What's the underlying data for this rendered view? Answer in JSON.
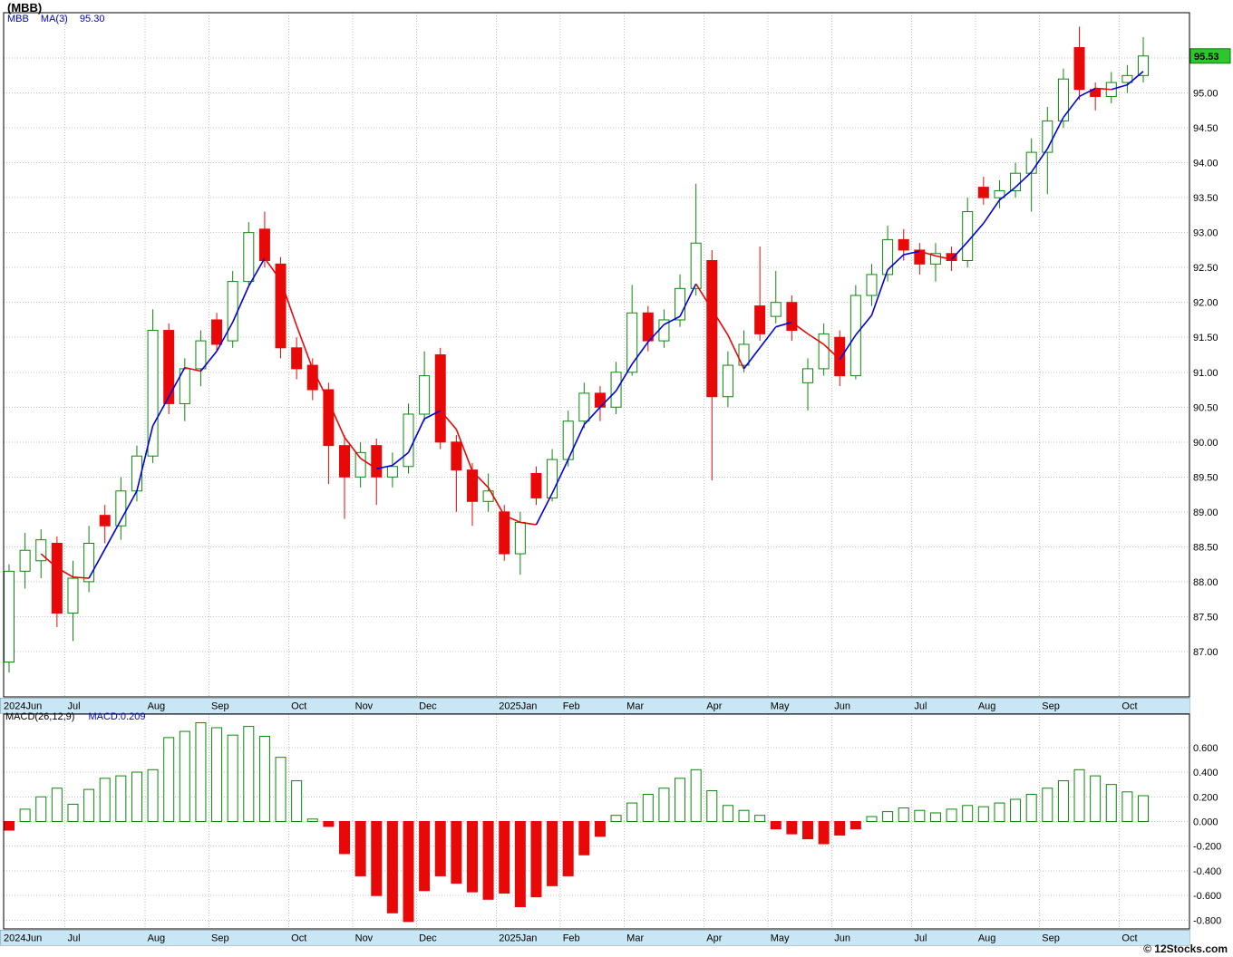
{
  "title": "(MBB)",
  "main_legend": {
    "symbol": "MBB",
    "ma": "MA(3)",
    "ma_value": "95.30"
  },
  "macd_legend": {
    "label": "MACD(26,12,9)",
    "value": "MACD:0.209"
  },
  "price_tag": "95.53",
  "watermark": "© 12Stocks.com",
  "colors": {
    "up": "#0a8a0a",
    "down": "#e80808",
    "ma_up": "#0000dd",
    "ma_down": "#e80808",
    "band": "#c9e6f4",
    "grid": "#c3c3c3",
    "border": "#000000",
    "tag_bg": "#2dc72d",
    "tag_text": "#000000",
    "legend_blue": "#0000cc",
    "axis_text": "#000000"
  },
  "axis": {
    "price_ticks": [
      "95.50",
      "95.00",
      "94.50",
      "94.00",
      "93.50",
      "93.00",
      "92.50",
      "92.00",
      "91.50",
      "91.00",
      "90.50",
      "90.00",
      "89.50",
      "89.00",
      "88.50",
      "88.00",
      "87.50",
      "87.00"
    ],
    "macd_ticks": [
      "0.600",
      "0.400",
      "0.200",
      "0.000",
      "-0.200",
      "-0.400",
      "-0.600",
      "-0.800"
    ],
    "months": [
      {
        "label": "2024Jun",
        "index": 0
      },
      {
        "label": "Jul",
        "index": 4
      },
      {
        "label": "Aug",
        "index": 9
      },
      {
        "label": "Sep",
        "index": 13
      },
      {
        "label": "Oct",
        "index": 18
      },
      {
        "label": "Nov",
        "index": 22
      },
      {
        "label": "Dec",
        "index": 26
      },
      {
        "label": "2025Jan",
        "index": 31
      },
      {
        "label": "Feb",
        "index": 35
      },
      {
        "label": "Mar",
        "index": 39
      },
      {
        "label": "Apr",
        "index": 44
      },
      {
        "label": "May",
        "index": 48
      },
      {
        "label": "Jun",
        "index": 52
      },
      {
        "label": "Jul",
        "index": 57
      },
      {
        "label": "Aug",
        "index": 61
      },
      {
        "label": "Sep",
        "index": 65
      },
      {
        "label": "Oct",
        "index": 70
      }
    ]
  },
  "chart_data": [
    {
      "type": "candlestick",
      "name": "MBB weekly price",
      "ylabel": "Price",
      "ylim": [
        86.35,
        96.15
      ],
      "ma_period": 3,
      "last_close": 95.53,
      "ohlc": [
        [
          86.85,
          88.25,
          86.7,
          88.15
        ],
        [
          88.15,
          88.7,
          87.9,
          88.45
        ],
        [
          88.3,
          88.75,
          88.05,
          88.6
        ],
        [
          88.55,
          88.65,
          87.35,
          87.55
        ],
        [
          87.55,
          88.3,
          87.15,
          88.05
        ],
        [
          88.0,
          88.8,
          87.85,
          88.55
        ],
        [
          88.95,
          89.1,
          88.55,
          88.8
        ],
        [
          88.8,
          89.5,
          88.6,
          89.3
        ],
        [
          89.3,
          89.95,
          89.15,
          89.8
        ],
        [
          89.8,
          91.9,
          89.7,
          91.6
        ],
        [
          91.6,
          91.7,
          90.4,
          90.55
        ],
        [
          90.55,
          91.2,
          90.3,
          91.05
        ],
        [
          91.05,
          91.6,
          90.8,
          91.45
        ],
        [
          91.75,
          91.85,
          91.3,
          91.4
        ],
        [
          91.45,
          92.45,
          91.35,
          92.3
        ],
        [
          92.3,
          93.15,
          92.25,
          93.0
        ],
        [
          93.05,
          93.3,
          92.5,
          92.6
        ],
        [
          92.55,
          92.65,
          91.2,
          91.35
        ],
        [
          91.35,
          91.5,
          90.9,
          91.05
        ],
        [
          91.1,
          91.2,
          90.6,
          90.75
        ],
        [
          90.75,
          90.85,
          89.4,
          89.95
        ],
        [
          89.95,
          90.1,
          88.9,
          89.5
        ],
        [
          89.5,
          90.0,
          89.35,
          89.85
        ],
        [
          89.95,
          90.05,
          89.1,
          89.5
        ],
        [
          89.5,
          89.85,
          89.35,
          89.65
        ],
        [
          89.65,
          90.55,
          89.55,
          90.4
        ],
        [
          90.4,
          91.3,
          90.3,
          90.95
        ],
        [
          91.25,
          91.35,
          89.9,
          90.0
        ],
        [
          90.0,
          90.1,
          89.0,
          89.6
        ],
        [
          89.6,
          89.7,
          88.8,
          89.15
        ],
        [
          89.15,
          89.55,
          89.0,
          89.3
        ],
        [
          89.0,
          89.1,
          88.3,
          88.4
        ],
        [
          88.4,
          89.0,
          88.1,
          88.85
        ],
        [
          89.55,
          89.65,
          89.1,
          89.2
        ],
        [
          89.2,
          89.9,
          89.15,
          89.75
        ],
        [
          89.75,
          90.45,
          89.65,
          90.3
        ],
        [
          90.3,
          90.85,
          90.2,
          90.7
        ],
        [
          90.7,
          90.8,
          90.3,
          90.5
        ],
        [
          90.5,
          91.15,
          90.4,
          91.0
        ],
        [
          91.0,
          92.25,
          90.95,
          91.85
        ],
        [
          91.85,
          91.95,
          91.3,
          91.45
        ],
        [
          91.45,
          91.9,
          91.35,
          91.75
        ],
        [
          91.75,
          92.4,
          91.65,
          92.2
        ],
        [
          92.2,
          93.7,
          92.1,
          92.85
        ],
        [
          92.6,
          92.75,
          89.45,
          90.65
        ],
        [
          90.65,
          91.3,
          90.5,
          91.1
        ],
        [
          91.1,
          91.6,
          91.0,
          91.4
        ],
        [
          91.95,
          92.8,
          91.45,
          91.55
        ],
        [
          91.8,
          92.45,
          91.7,
          92.0
        ],
        [
          92.0,
          92.1,
          91.45,
          91.6
        ],
        [
          90.85,
          91.2,
          90.45,
          91.05
        ],
        [
          91.05,
          91.7,
          90.95,
          91.55
        ],
        [
          91.5,
          91.6,
          90.8,
          90.95
        ],
        [
          90.95,
          92.25,
          90.9,
          92.1
        ],
        [
          92.1,
          92.55,
          91.95,
          92.4
        ],
        [
          92.4,
          93.1,
          92.3,
          92.9
        ],
        [
          92.9,
          93.05,
          92.6,
          92.75
        ],
        [
          92.75,
          92.85,
          92.4,
          92.55
        ],
        [
          92.55,
          92.85,
          92.3,
          92.7
        ],
        [
          92.7,
          92.8,
          92.45,
          92.6
        ],
        [
          92.6,
          93.5,
          92.5,
          93.3
        ],
        [
          93.65,
          93.8,
          93.4,
          93.5
        ],
        [
          93.5,
          93.75,
          93.35,
          93.6
        ],
        [
          93.6,
          94.0,
          93.5,
          93.85
        ],
        [
          93.85,
          94.35,
          93.3,
          94.15
        ],
        [
          94.15,
          94.8,
          93.55,
          94.6
        ],
        [
          94.6,
          95.35,
          94.5,
          95.2
        ],
        [
          95.65,
          95.95,
          94.9,
          95.05
        ],
        [
          95.05,
          95.15,
          94.75,
          94.95
        ],
        [
          94.95,
          95.3,
          94.85,
          95.15
        ],
        [
          95.15,
          95.4,
          95.0,
          95.25
        ],
        [
          95.25,
          95.8,
          95.15,
          95.53
        ]
      ]
    },
    {
      "type": "bar",
      "name": "MACD(26,12,9) histogram",
      "ylim": [
        -0.87,
        0.87
      ],
      "last_value": 0.209,
      "values": [
        -0.07,
        0.1,
        0.2,
        0.27,
        0.14,
        0.26,
        0.35,
        0.37,
        0.4,
        0.42,
        0.68,
        0.73,
        0.8,
        0.76,
        0.7,
        0.77,
        0.69,
        0.52,
        0.33,
        0.02,
        -0.04,
        -0.26,
        -0.44,
        -0.6,
        -0.74,
        -0.81,
        -0.56,
        -0.44,
        -0.5,
        -0.57,
        -0.63,
        -0.58,
        -0.69,
        -0.61,
        -0.52,
        -0.44,
        -0.27,
        -0.12,
        0.05,
        0.15,
        0.22,
        0.27,
        0.35,
        0.42,
        0.25,
        0.13,
        0.09,
        0.05,
        -0.06,
        -0.1,
        -0.14,
        -0.18,
        -0.11,
        -0.06,
        0.04,
        0.08,
        0.11,
        0.09,
        0.07,
        0.1,
        0.13,
        0.12,
        0.15,
        0.18,
        0.22,
        0.27,
        0.33,
        0.42,
        0.37,
        0.3,
        0.24,
        0.209
      ]
    }
  ]
}
